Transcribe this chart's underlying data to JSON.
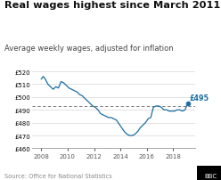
{
  "title": "Real wages highest since March 2011",
  "subtitle": "Average weekly wages, adjusted for inflation",
  "source": "Source: Office for National Statistics",
  "line_color": "#1a6ea3",
  "dashed_line_value": 493,
  "annotation_text": "£495",
  "annotation_value": 495,
  "annotation_year": 2019.1,
  "ylim": [
    460,
    522
  ],
  "yticks": [
    460,
    470,
    480,
    490,
    500,
    510,
    520
  ],
  "ytick_labels": [
    "£460",
    "£470",
    "£480",
    "£490",
    "£500",
    "£510",
    "£520"
  ],
  "xlim": [
    2007.3,
    2019.7
  ],
  "xticks": [
    2008,
    2010,
    2012,
    2014,
    2016,
    2018
  ],
  "background_color": "#ffffff",
  "title_fontsize": 8.2,
  "subtitle_fontsize": 6.0,
  "source_fontsize": 4.8,
  "data_x": [
    2008.0,
    2008.15,
    2008.3,
    2008.5,
    2008.7,
    2008.9,
    2009.1,
    2009.3,
    2009.5,
    2009.7,
    2009.9,
    2010.1,
    2010.3,
    2010.5,
    2010.7,
    2010.9,
    2011.1,
    2011.3,
    2011.5,
    2011.7,
    2011.9,
    2012.1,
    2012.3,
    2012.5,
    2012.7,
    2012.9,
    2013.1,
    2013.3,
    2013.5,
    2013.7,
    2013.9,
    2014.1,
    2014.3,
    2014.5,
    2014.7,
    2014.9,
    2015.1,
    2015.3,
    2015.5,
    2015.7,
    2015.9,
    2016.1,
    2016.3,
    2016.5,
    2016.7,
    2016.9,
    2017.1,
    2017.3,
    2017.5,
    2017.7,
    2017.9,
    2018.1,
    2018.3,
    2018.5,
    2018.7,
    2018.9,
    2019.1
  ],
  "data_y": [
    514,
    516,
    514,
    510,
    508,
    506,
    508,
    507,
    512,
    511,
    509,
    507,
    506,
    505,
    504,
    502,
    501,
    499,
    497,
    495,
    493,
    492,
    490,
    487,
    486,
    485,
    484,
    484,
    483,
    482,
    479,
    476,
    473,
    471,
    470,
    470,
    471,
    473,
    476,
    478,
    480,
    483,
    484,
    492,
    493,
    493,
    492,
    490,
    490,
    489,
    489,
    489,
    490,
    490,
    489,
    490,
    495
  ]
}
